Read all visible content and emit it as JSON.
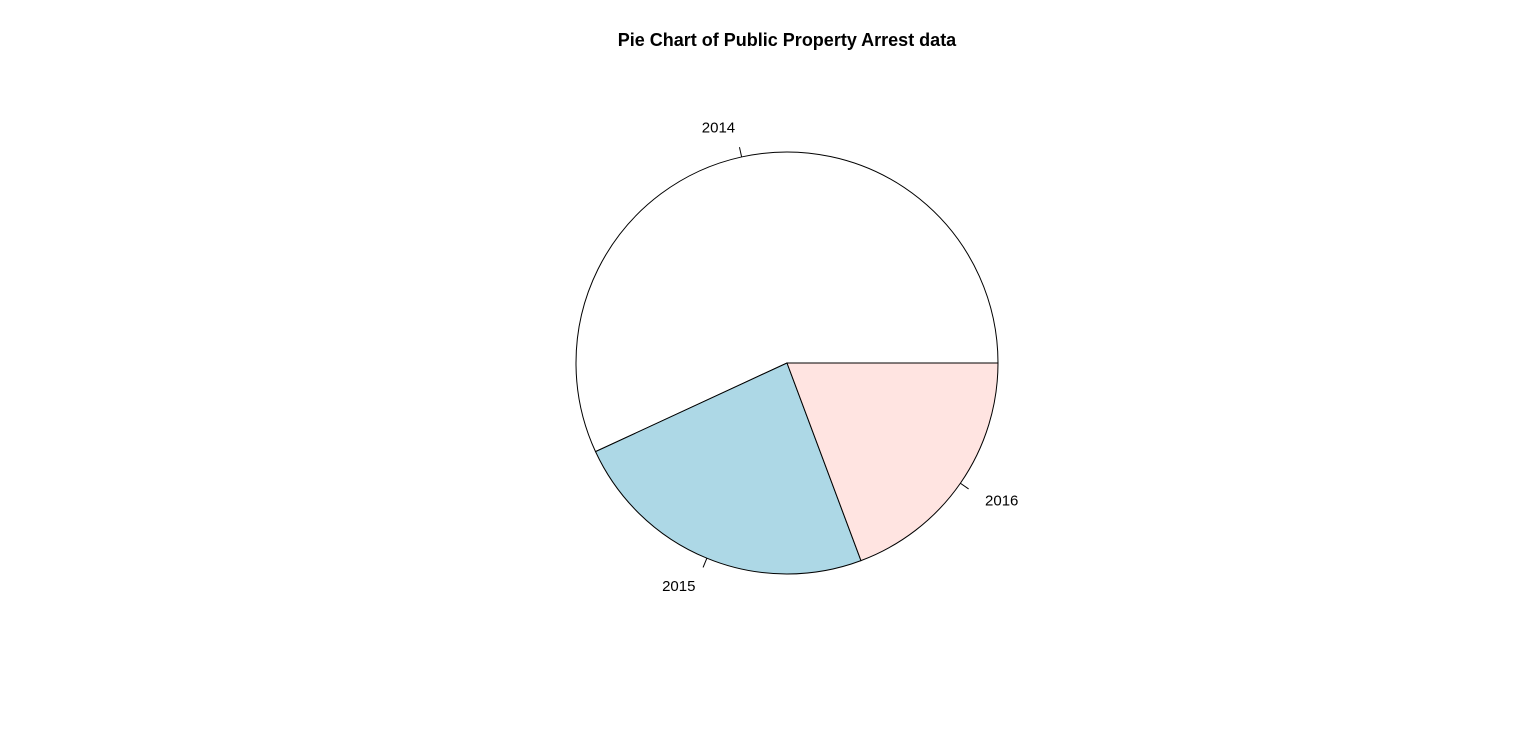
{
  "chart_data": {
    "type": "pie",
    "title": "Pie Chart of Public Property Arrest data",
    "start_angle": "0° (3 o'clock), counter-clockwise",
    "slices": [
      {
        "label": "2014",
        "value": 0.569,
        "color": "#FFFFFF"
      },
      {
        "label": "2015",
        "value": 0.238,
        "color": "#ADD8E6"
      },
      {
        "label": "2016",
        "value": 0.193,
        "color": "#FFE4E1"
      }
    ],
    "border_color": "#000000"
  }
}
